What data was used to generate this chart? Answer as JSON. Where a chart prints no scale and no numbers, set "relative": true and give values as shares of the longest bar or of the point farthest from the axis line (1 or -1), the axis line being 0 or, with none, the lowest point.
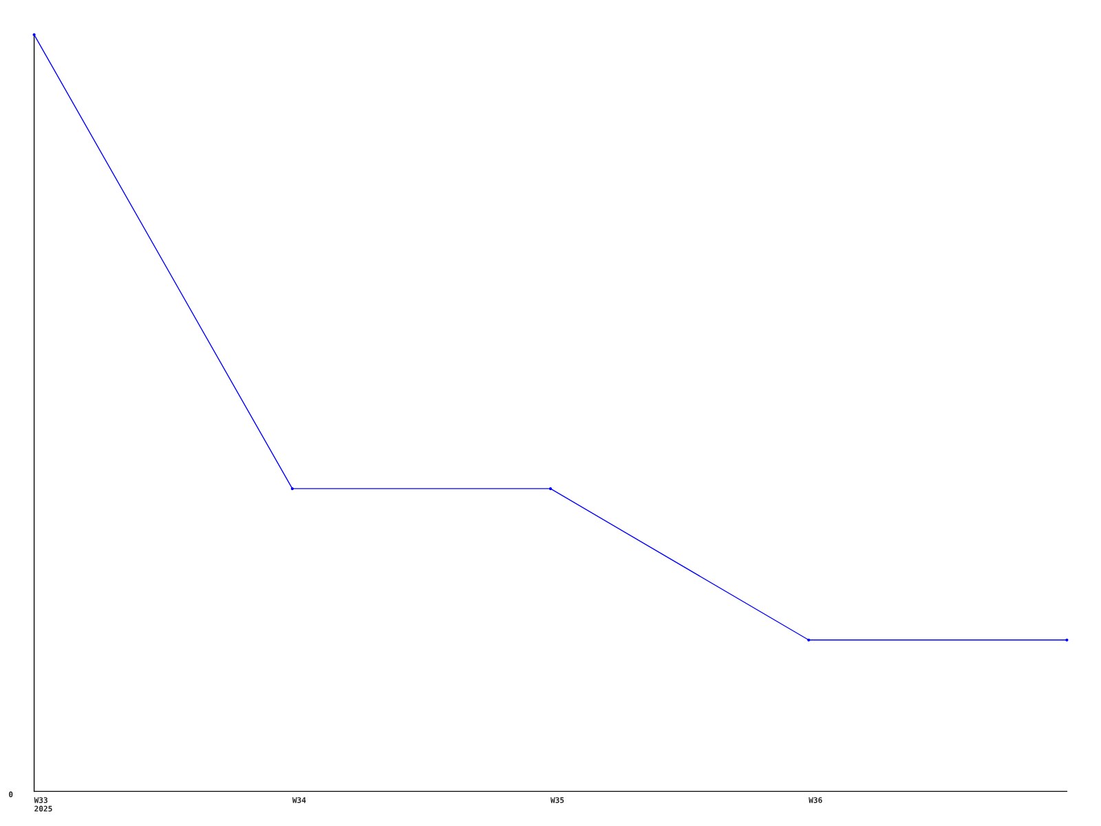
{
  "chart_data": {
    "type": "line",
    "relative": true,
    "categories": [
      "W33\n2025",
      "W34",
      "W35",
      "W36",
      null
    ],
    "series": [
      {
        "color": "#0000ff",
        "values": [
          1,
          0.4,
          0.4,
          0.2,
          0.2
        ]
      }
    ],
    "annotations": [
      "0"
    ],
    "marker": "circle",
    "line_style": "solid",
    "grid": false,
    "legend": false
  }
}
